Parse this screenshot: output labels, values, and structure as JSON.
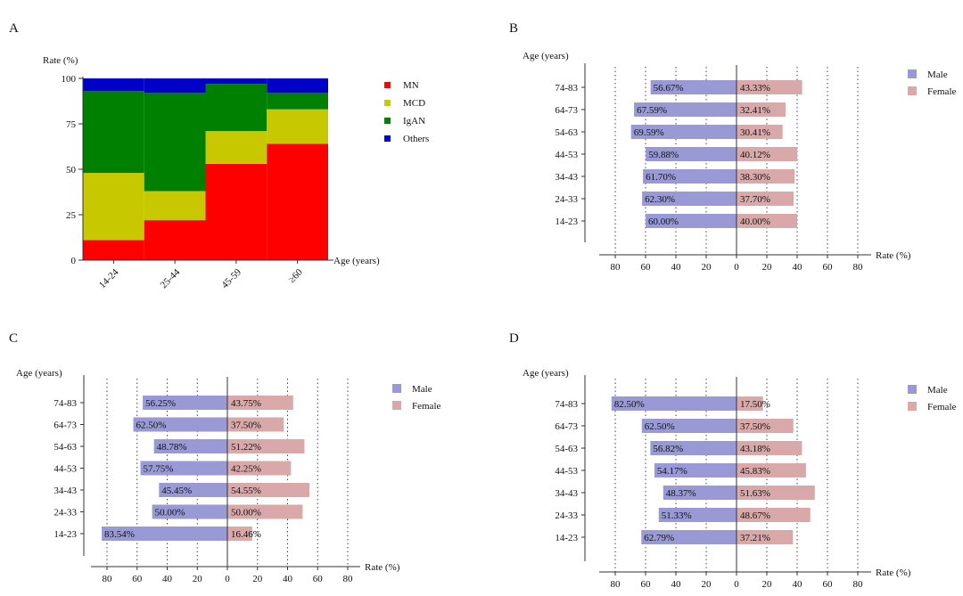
{
  "colors": {
    "MN": "#ff0000",
    "MCD": "#c8c800",
    "IgAN": "#008000",
    "Others": "#0000c8",
    "male": "#9999d6",
    "female": "#d9a9a9",
    "axis": "#333333"
  },
  "panels": {
    "A": {
      "letter": "A"
    },
    "B": {
      "letter": "B"
    },
    "C": {
      "letter": "C"
    },
    "D": {
      "letter": "D"
    }
  },
  "chart_data": [
    {
      "id": "A",
      "type": "bar",
      "stacked": true,
      "ylabel": "Rate (%)",
      "xlabel": "Age (years)",
      "ylim": [
        0,
        100
      ],
      "yticks": [
        "0",
        "25",
        "50",
        "75",
        "100"
      ],
      "categories": [
        "14-24",
        "25-44",
        "45-59",
        "≥60"
      ],
      "series": [
        {
          "name": "MN",
          "values": [
            11,
            22,
            53,
            64
          ]
        },
        {
          "name": "MCD",
          "values": [
            37,
            16,
            18,
            19
          ]
        },
        {
          "name": "IgAN",
          "values": [
            45,
            54,
            26,
            9
          ]
        },
        {
          "name": "Others",
          "values": [
            7,
            8,
            3,
            8
          ]
        }
      ],
      "legend": "right"
    },
    {
      "id": "B",
      "type": "bar",
      "orientation": "horizontal-population-pyramid",
      "ylabel": "Age (years)",
      "xlabel": "Rate (%)",
      "xticks": [
        "80",
        "60",
        "40",
        "20",
        "0",
        "20",
        "40",
        "60",
        "80"
      ],
      "categories": [
        "74-83",
        "64-73",
        "54-63",
        "44-53",
        "34-43",
        "24-33",
        "14-23"
      ],
      "series": [
        {
          "name": "Male",
          "values": [
            56.67,
            67.59,
            69.59,
            59.88,
            61.7,
            62.3,
            60.0
          ],
          "labels": [
            "56.67%",
            "67.59%",
            "69.59%",
            "59.88%",
            "61.70%",
            "62.30%",
            "60.00%"
          ]
        },
        {
          "name": "Female",
          "values": [
            43.33,
            32.41,
            30.41,
            40.12,
            38.3,
            37.7,
            40.0
          ],
          "labels": [
            "43.33%",
            "32.41%",
            "30.41%",
            "40.12%",
            "38.30%",
            "37.70%",
            "40.00%"
          ]
        }
      ],
      "grid": true,
      "legend": "right"
    },
    {
      "id": "C",
      "type": "bar",
      "orientation": "horizontal-population-pyramid",
      "ylabel": "Age (years)",
      "xlabel": "Rate (%)",
      "xticks": [
        "80",
        "60",
        "40",
        "20",
        "0",
        "20",
        "40",
        "60",
        "80"
      ],
      "categories": [
        "74-83",
        "64-73",
        "54-63",
        "44-53",
        "34-43",
        "24-33",
        "14-23"
      ],
      "series": [
        {
          "name": "Male",
          "values": [
            56.25,
            62.5,
            48.78,
            57.75,
            45.45,
            50.0,
            83.54
          ],
          "labels": [
            "56.25%",
            "62.50%",
            "48.78%",
            "57.75%",
            "45.45%",
            "50.00%",
            "83.54%"
          ]
        },
        {
          "name": "Female",
          "values": [
            43.75,
            37.5,
            51.22,
            42.25,
            54.55,
            50.0,
            16.46
          ],
          "labels": [
            "43.75%",
            "37.50%",
            "51.22%",
            "42.25%",
            "54.55%",
            "50.00%",
            "16.46%"
          ]
        }
      ],
      "grid": true,
      "legend": "right"
    },
    {
      "id": "D",
      "type": "bar",
      "orientation": "horizontal-population-pyramid",
      "ylabel": "Age (years)",
      "xlabel": "Rate (%)",
      "xticks": [
        "80",
        "60",
        "40",
        "20",
        "0",
        "20",
        "40",
        "60",
        "80"
      ],
      "categories": [
        "74-83",
        "64-73",
        "54-63",
        "44-53",
        "34-43",
        "24-33",
        "14-23"
      ],
      "series": [
        {
          "name": "Male",
          "values": [
            82.5,
            62.5,
            56.82,
            54.17,
            48.37,
            51.33,
            62.79
          ],
          "labels": [
            "82.50%",
            "62.50%",
            "56.82%",
            "54.17%",
            "48.37%",
            "51.33%",
            "62.79%"
          ]
        },
        {
          "name": "Female",
          "values": [
            17.5,
            37.5,
            43.18,
            45.83,
            51.63,
            48.67,
            37.21
          ],
          "labels": [
            "17.50%",
            "37.50%",
            "43.18%",
            "45.83%",
            "51.63%",
            "48.67%",
            "37.21%"
          ]
        }
      ],
      "grid": true,
      "legend": "right"
    }
  ]
}
